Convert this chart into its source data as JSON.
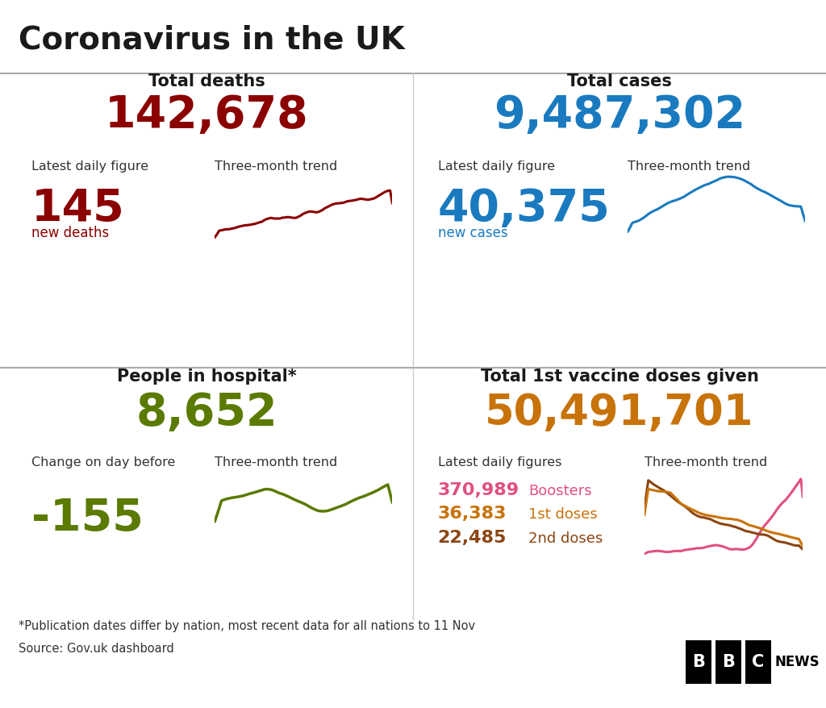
{
  "title": "Coronavirus in the UK",
  "bg_color": "#ffffff",
  "title_color": "#1a1a1a",
  "panels": {
    "top_left": {
      "heading": "Total deaths",
      "total": "142,678",
      "total_color": "#8b0000",
      "label1": "Latest daily figure",
      "label2": "Three-month trend",
      "daily": "145",
      "daily_color": "#8b0000",
      "daily_label": "new deaths"
    },
    "top_right": {
      "heading": "Total cases",
      "total": "9,487,302",
      "total_color": "#1a7abf",
      "label1": "Latest daily figure",
      "label2": "Three-month trend",
      "daily": "40,375",
      "daily_color": "#1a7abf",
      "daily_label": "new cases"
    },
    "bottom_left": {
      "heading": "People in hospital*",
      "total": "8,652",
      "total_color": "#5a7a00",
      "label1": "Change on day before",
      "label2": "Three-month trend",
      "daily": "-155",
      "daily_color": "#5a7a00"
    },
    "bottom_right": {
      "heading": "Total 1st vaccine doses given",
      "total": "50,491,701",
      "total_color": "#c8720a",
      "label1": "Latest daily figures",
      "label2": "Three-month trend",
      "lines": [
        {
          "value": "370,989",
          "label": "Boosters",
          "value_color": "#e05080",
          "label_color": "#e05080"
        },
        {
          "value": "36,383",
          "label": "1st doses",
          "value_color": "#c8720a",
          "label_color": "#c8720a"
        },
        {
          "value": "22,485",
          "label": "2nd doses",
          "value_color": "#8b4513",
          "label_color": "#8b4513"
        }
      ],
      "trend_colors": [
        "#e05080",
        "#8b4513",
        "#c8720a"
      ]
    }
  },
  "footnote": "*Publication dates differ by nation, most recent data for all nations to 11 Nov",
  "source": "Source: Gov.uk dashboard"
}
